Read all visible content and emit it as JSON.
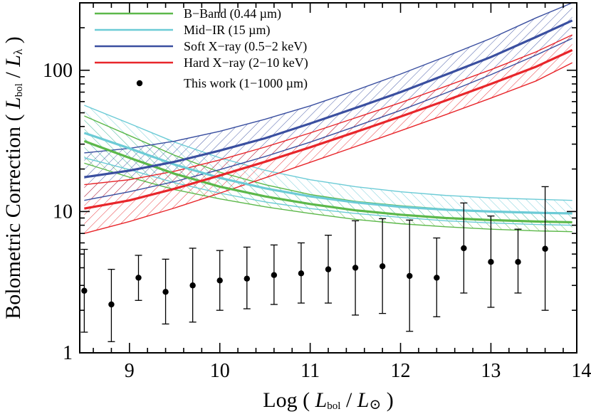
{
  "chart_data": {
    "type": "line",
    "ylabel": {
      "prefix": "Bolometric Correction ( ",
      "num_main": "L",
      "num_sub": "bol",
      "mid": " / ",
      "den_main": "L",
      "den_sub": "λ",
      "suffix": " )"
    },
    "xlabel": {
      "prefix": "Log ( ",
      "num_main": "L",
      "num_sub": "bol",
      "mid": " / ",
      "den_main": "L",
      "den_sub": "⊙",
      "suffix": " )"
    },
    "xlim": [
      8.45,
      13.95
    ],
    "ylim": [
      1,
      300
    ],
    "yscale": "log",
    "x_ticks": [
      {
        "value": 9,
        "label": "9"
      },
      {
        "value": 10,
        "label": "10"
      },
      {
        "value": 11,
        "label": "11"
      },
      {
        "value": 12,
        "label": "12"
      },
      {
        "value": 13,
        "label": "13"
      },
      {
        "value": 14,
        "label": "14"
      }
    ],
    "y_ticks": [
      {
        "value": 1,
        "label": "1"
      },
      {
        "value": 10,
        "label": "10"
      },
      {
        "value": 100,
        "label": "100"
      }
    ],
    "legend_position": "top-center",
    "series": [
      {
        "name": "B−Band (0.44 µm)",
        "color": "#5cb84a",
        "x": [
          8.5,
          9.0,
          9.5,
          10.0,
          10.5,
          11.0,
          11.5,
          12.0,
          12.5,
          13.0,
          13.5,
          13.9
        ],
        "y": [
          31.5,
          24.0,
          18.5,
          15.0,
          12.8,
          11.3,
          10.2,
          9.5,
          9.0,
          8.7,
          8.5,
          8.4
        ],
        "upper": [
          47.5,
          34.5,
          25.0,
          19.0,
          15.5,
          13.2,
          11.8,
          11.0,
          10.4,
          10.0,
          9.8,
          9.7
        ],
        "lower": [
          22.0,
          17.5,
          14.3,
          12.3,
          10.8,
          9.7,
          8.8,
          8.2,
          7.8,
          7.5,
          7.3,
          7.2
        ]
      },
      {
        "name": "Mid−IR (15 µm)",
        "color": "#6ccbd6",
        "x": [
          8.5,
          9.0,
          9.5,
          10.0,
          10.5,
          11.0,
          11.5,
          12.0,
          12.5,
          13.0,
          13.5,
          13.9
        ],
        "y": [
          36.0,
          28.0,
          21.5,
          17.3,
          14.6,
          12.8,
          11.6,
          10.8,
          10.3,
          10.0,
          9.8,
          9.7
        ],
        "upper": [
          56.5,
          42.0,
          31.0,
          24.0,
          19.6,
          16.8,
          15.0,
          13.8,
          13.0,
          12.5,
          12.2,
          12.0
        ],
        "lower": [
          24.0,
          19.8,
          16.0,
          13.5,
          11.7,
          10.5,
          9.7,
          9.1,
          8.6,
          8.3,
          8.1,
          8.0
        ]
      },
      {
        "name": "Soft X−ray (0.5−2 keV)",
        "color": "#3a4fa0",
        "x": [
          8.5,
          9.0,
          9.5,
          10.0,
          10.5,
          11.0,
          11.5,
          12.0,
          12.5,
          13.0,
          13.5,
          13.9
        ],
        "y": [
          17.5,
          19.5,
          22.5,
          27.0,
          33.0,
          42.0,
          54.0,
          70.0,
          93.0,
          124.0,
          172.0,
          225.0
        ],
        "upper": [
          26.0,
          28.0,
          31.5,
          37.0,
          45.0,
          56.0,
          72.0,
          94.0,
          125.0,
          168.0,
          235.0,
          300.0
        ],
        "lower": [
          12.0,
          13.8,
          16.3,
          19.8,
          24.5,
          31.0,
          40.0,
          52.0,
          69.0,
          93.0,
          128.0,
          168.0
        ]
      },
      {
        "name": "Hard X−ray (2−10 keV)",
        "color": "#e8262b",
        "x": [
          8.5,
          9.0,
          9.5,
          10.0,
          10.5,
          11.0,
          11.5,
          12.0,
          12.5,
          13.0,
          13.5,
          13.9
        ],
        "y": [
          10.5,
          12.0,
          14.5,
          18.0,
          22.5,
          28.5,
          36.5,
          47.0,
          61.0,
          80.0,
          106.0,
          139.0
        ],
        "upper": [
          15.5,
          16.8,
          19.3,
          23.2,
          28.6,
          36.0,
          46.0,
          59.0,
          77.0,
          101.0,
          135.0,
          178.0
        ],
        "lower": [
          7.0,
          8.5,
          10.6,
          13.5,
          17.3,
          22.3,
          28.8,
          37.3,
          48.5,
          63.5,
          84.0,
          113.0
        ]
      }
    ],
    "points_series": {
      "name": "This work (1−1000 µm)",
      "color": "#000000",
      "x": [
        8.5,
        8.8,
        9.1,
        9.4,
        9.7,
        10.0,
        10.3,
        10.6,
        10.9,
        11.2,
        11.5,
        11.8,
        12.1,
        12.4,
        12.7,
        13.0,
        13.3,
        13.6
      ],
      "y": [
        2.75,
        2.2,
        3.4,
        2.7,
        3.0,
        3.25,
        3.35,
        3.55,
        3.65,
        3.9,
        4.0,
        4.1,
        3.5,
        3.4,
        5.5,
        4.4,
        4.4,
        5.45
      ],
      "y_upper": [
        5.4,
        3.9,
        4.9,
        4.6,
        5.5,
        5.3,
        5.6,
        5.8,
        6.0,
        6.8,
        8.6,
        8.9,
        8.7,
        6.5,
        11.5,
        9.3,
        7.5,
        15.0
      ],
      "y_lower": [
        1.4,
        1.2,
        2.35,
        1.6,
        1.65,
        2.0,
        2.05,
        2.2,
        2.25,
        2.25,
        1.85,
        1.9,
        1.42,
        1.8,
        2.65,
        2.1,
        2.65,
        2.0
      ]
    }
  }
}
